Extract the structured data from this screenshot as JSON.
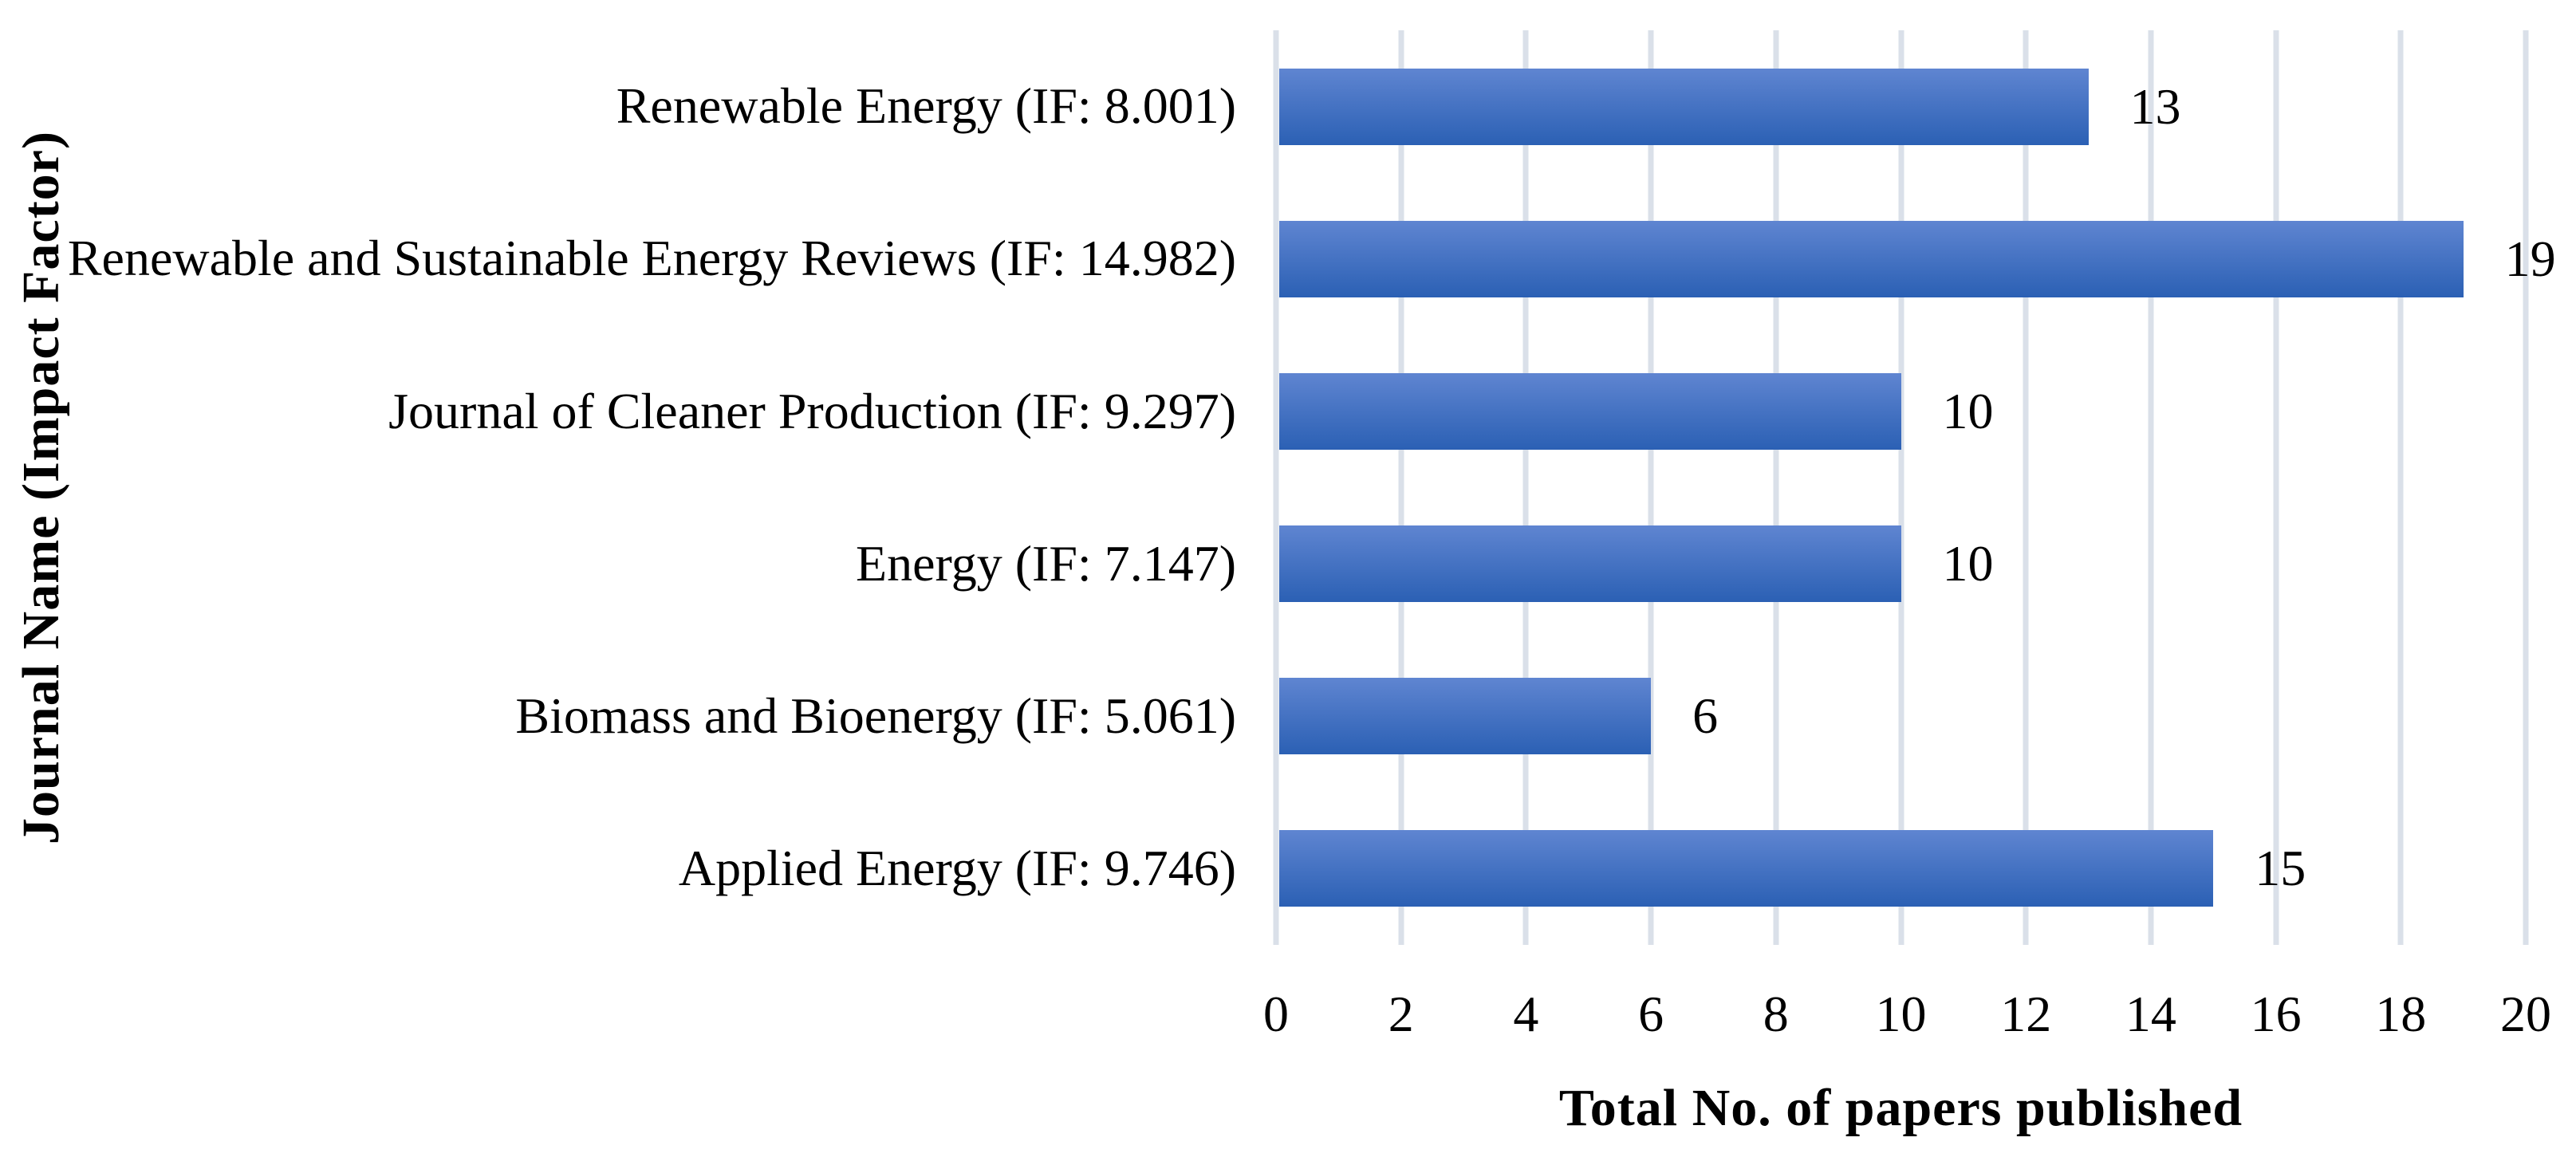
{
  "chart_data": {
    "type": "bar",
    "orientation": "horizontal",
    "title": "",
    "categories": [
      "Renewable Energy (IF: 8.001)",
      "Renewable and Sustainable Energy Reviews (IF: 14.982)",
      "Journal of Cleaner Production (IF: 9.297)",
      "Energy (IF: 7.147)",
      "Biomass and Bioenergy (IF: 5.061)",
      "Applied Energy (IF: 9.746)"
    ],
    "values": [
      13,
      19,
      10,
      10,
      6,
      15
    ],
    "data_labels": [
      "13",
      "19",
      "10",
      "10",
      "6",
      "15"
    ],
    "xlabel": "Total No. of papers published",
    "ylabel": "Journal Name (Impact Factor)",
    "xlim": [
      0,
      20
    ],
    "xticks": [
      0,
      2,
      4,
      6,
      8,
      10,
      12,
      14,
      16,
      18,
      20
    ],
    "grid": "vertical",
    "legend": "none",
    "colors": {
      "bar_gradient_top": "#5F85D1",
      "bar_gradient_bottom": "#2B60B4",
      "gridline": "#DAE0E9",
      "text": "#000000",
      "background": "#FFFFFF"
    }
  }
}
